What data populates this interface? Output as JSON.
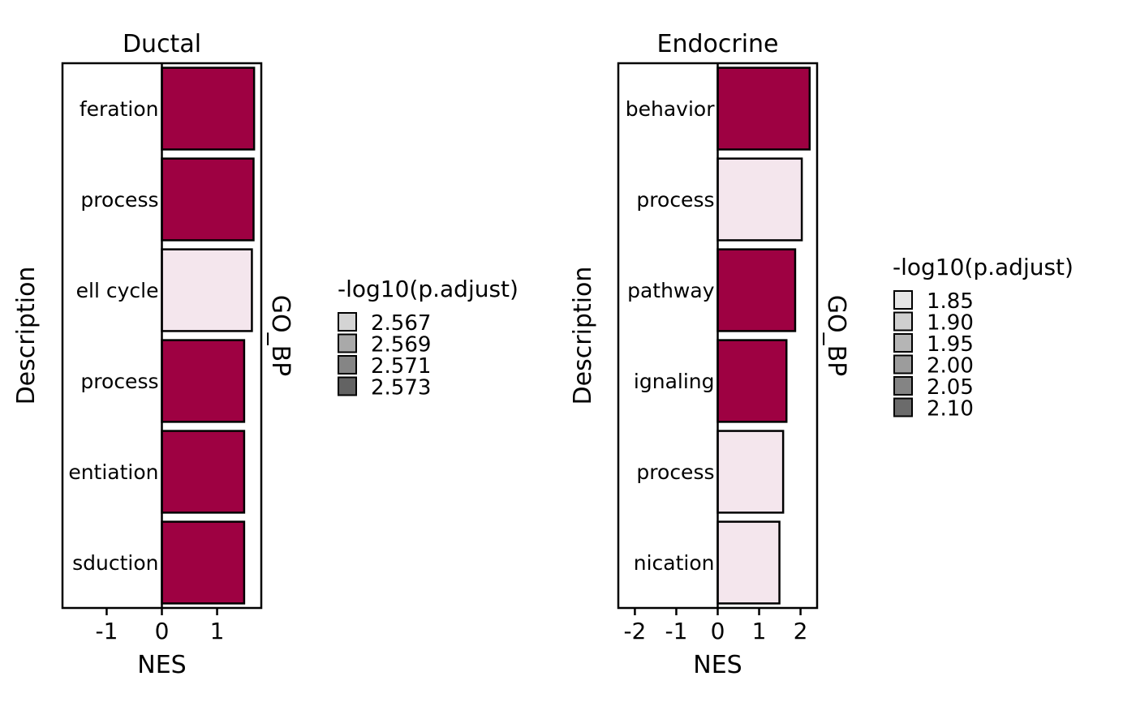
{
  "chart_data": [
    {
      "type": "bar",
      "orientation": "horizontal",
      "title": "Ductal",
      "xlabel": "NES",
      "ylabel": "Description",
      "strip": "GO_BP",
      "categories": [
        "feration",
        "process",
        "ell cycle",
        "process",
        "entiation",
        "sduction"
      ],
      "values": [
        1.67,
        1.66,
        1.63,
        1.49,
        1.49,
        1.49
      ],
      "fill_colors": [
        "#9e0142",
        "#9e0142",
        "#f4e6ed",
        "#9e0142",
        "#9e0142",
        "#9e0142"
      ],
      "xlim": [
        -1.8,
        1.8
      ],
      "xticks": [
        -1,
        0,
        1
      ],
      "xtick_labels": [
        "-1",
        "0",
        "1"
      ],
      "legend": {
        "title": "-log10(p.adjust)",
        "position": "right",
        "items": [
          {
            "label": "2.567",
            "color": "#d4d4d4"
          },
          {
            "label": "2.569",
            "color": "#a9a9a9"
          },
          {
            "label": "2.571",
            "color": "#858585"
          },
          {
            "label": "2.573",
            "color": "#636363"
          }
        ]
      }
    },
    {
      "type": "bar",
      "orientation": "horizontal",
      "title": "Endocrine",
      "xlabel": "NES",
      "ylabel": "Description",
      "strip": "GO_BP",
      "categories": [
        "behavior",
        "process",
        "pathway",
        "ignaling",
        "process",
        "nication"
      ],
      "values": [
        2.22,
        2.03,
        1.87,
        1.66,
        1.58,
        1.49
      ],
      "fill_colors": [
        "#9e0142",
        "#f4e6ed",
        "#9e0142",
        "#9e0142",
        "#f4e6ed",
        "#f4e6ed"
      ],
      "xlim": [
        -2.4,
        2.4
      ],
      "xticks": [
        -2,
        -1,
        0,
        1,
        2
      ],
      "xtick_labels": [
        "-2",
        "-1",
        "0",
        "1",
        "2"
      ],
      "legend": {
        "title": "-log10(p.adjust)",
        "position": "right",
        "items": [
          {
            "label": "1.85",
            "color": "#e6e6e6"
          },
          {
            "label": "1.90",
            "color": "#cfcfcf"
          },
          {
            "label": "1.95",
            "color": "#b5b5b5"
          },
          {
            "label": "2.00",
            "color": "#9c9c9c"
          },
          {
            "label": "2.05",
            "color": "#848484"
          },
          {
            "label": "2.10",
            "color": "#6b6b6b"
          }
        ]
      }
    }
  ]
}
